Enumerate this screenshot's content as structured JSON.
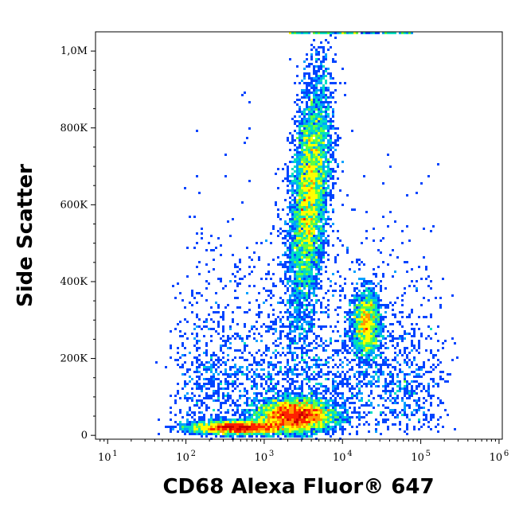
{
  "chart_data": {
    "type": "scatter",
    "subtype": "flow-cytometry-density-plot",
    "xlabel": "CD68 Alexa Fluor® 647",
    "ylabel": "Side Scatter",
    "x_scale": "log",
    "xlim": [
      7,
      1100000
    ],
    "ylim": [
      -10000,
      1050000
    ],
    "x_ticks": [
      {
        "base": "10",
        "exp": "1",
        "value": 10
      },
      {
        "base": "10",
        "exp": "2",
        "value": 100
      },
      {
        "base": "10",
        "exp": "3",
        "value": 1000
      },
      {
        "base": "10",
        "exp": "4",
        "value": 10000
      },
      {
        "base": "10",
        "exp": "5",
        "value": 100000
      },
      {
        "base": "10",
        "exp": "6",
        "value": 1000000
      }
    ],
    "y_ticks": [
      {
        "label": "0",
        "value": 0
      },
      {
        "label": "200K",
        "value": 200000
      },
      {
        "label": "400K",
        "value": 400000
      },
      {
        "label": "600K",
        "value": 600000
      },
      {
        "label": "800K",
        "value": 800000
      },
      {
        "label": "1,0M",
        "value": 1000000
      }
    ],
    "grid": false,
    "colormap": [
      "#0000cc",
      "#0044ff",
      "#00a0ff",
      "#00e0c0",
      "#60ff40",
      "#ffff00",
      "#ff9900",
      "#ff2200",
      "#cc0000"
    ],
    "populations": [
      {
        "name": "",
        "center_x": 3800,
        "center_y": 620000,
        "spread_log_x": 0.13,
        "spread_y": 140000,
        "tilt": 0.5,
        "weight": 1.0
      },
      {
        "name": "",
        "center_x": 20000,
        "center_y": 290000,
        "spread_log_x": 0.09,
        "spread_y": 45000,
        "tilt": 0.0,
        "weight": 0.28
      },
      {
        "name": "",
        "center_x": 2500,
        "center_y": 50000,
        "spread_log_x": 0.25,
        "spread_y": 22000,
        "tilt": 0.0,
        "weight": 0.75
      },
      {
        "name": "",
        "center_x": 450,
        "center_y": 20000,
        "spread_log_x": 0.3,
        "spread_y": 9000,
        "tilt": 0.0,
        "weight": 0.45
      }
    ]
  }
}
